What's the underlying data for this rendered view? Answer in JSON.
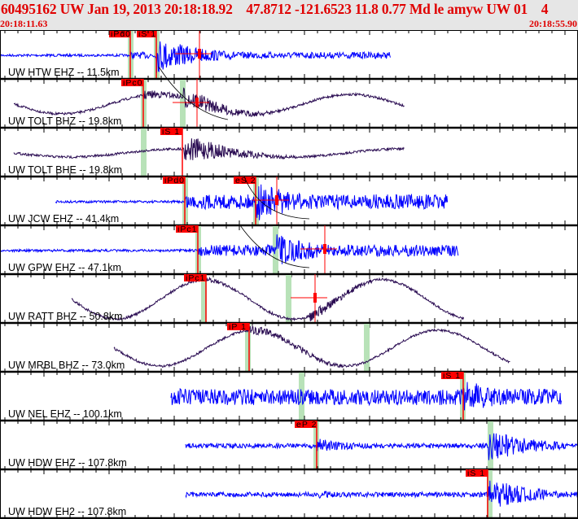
{
  "header": {
    "title": "60495162 UW Jan 19, 2013 20:18:18.92    47.8712 -121.6523 11.8 0.77 Md le amyw UW 01    4",
    "time_start": "20:18:11.63",
    "time_end": "20:18:55.90"
  },
  "colors": {
    "short_period": "#0000ff",
    "broadband": "#2a0c52",
    "pick": "#ff0000",
    "window": "#b8e2b8",
    "header_text": "#e00000"
  },
  "traces": [
    {
      "label": "UW HTW EHZ -- 11.5km",
      "picks": [
        "iPd0",
        "iS 1"
      ]
    },
    {
      "label": "UW TOLT BHZ -- 19.8km",
      "picks": [
        "iPc0"
      ]
    },
    {
      "label": "UW TOLT BHE -- 19.8km",
      "picks": [
        "iS 1"
      ]
    },
    {
      "label": "UW JCW EHZ -- 41.4km",
      "picks": [
        "iPd0",
        "eS 2"
      ]
    },
    {
      "label": "UW GPW EHZ -- 47.1km",
      "picks": [
        "iPc1"
      ]
    },
    {
      "label": "UW RATT BHZ -- 50.8km",
      "picks": [
        "iPc1"
      ]
    },
    {
      "label": "UW MRBL BHZ -- 73.0km",
      "picks": [
        "iP 1"
      ]
    },
    {
      "label": "UW NEL EHZ -- 100.1km",
      "picks": [
        "iS 1"
      ]
    },
    {
      "label": "UW HDW EHZ -- 107.8km",
      "picks": [
        "eP 2"
      ]
    },
    {
      "label": "UW HDW EH2 -- 107.8km",
      "picks": [
        "iS 1"
      ]
    }
  ]
}
